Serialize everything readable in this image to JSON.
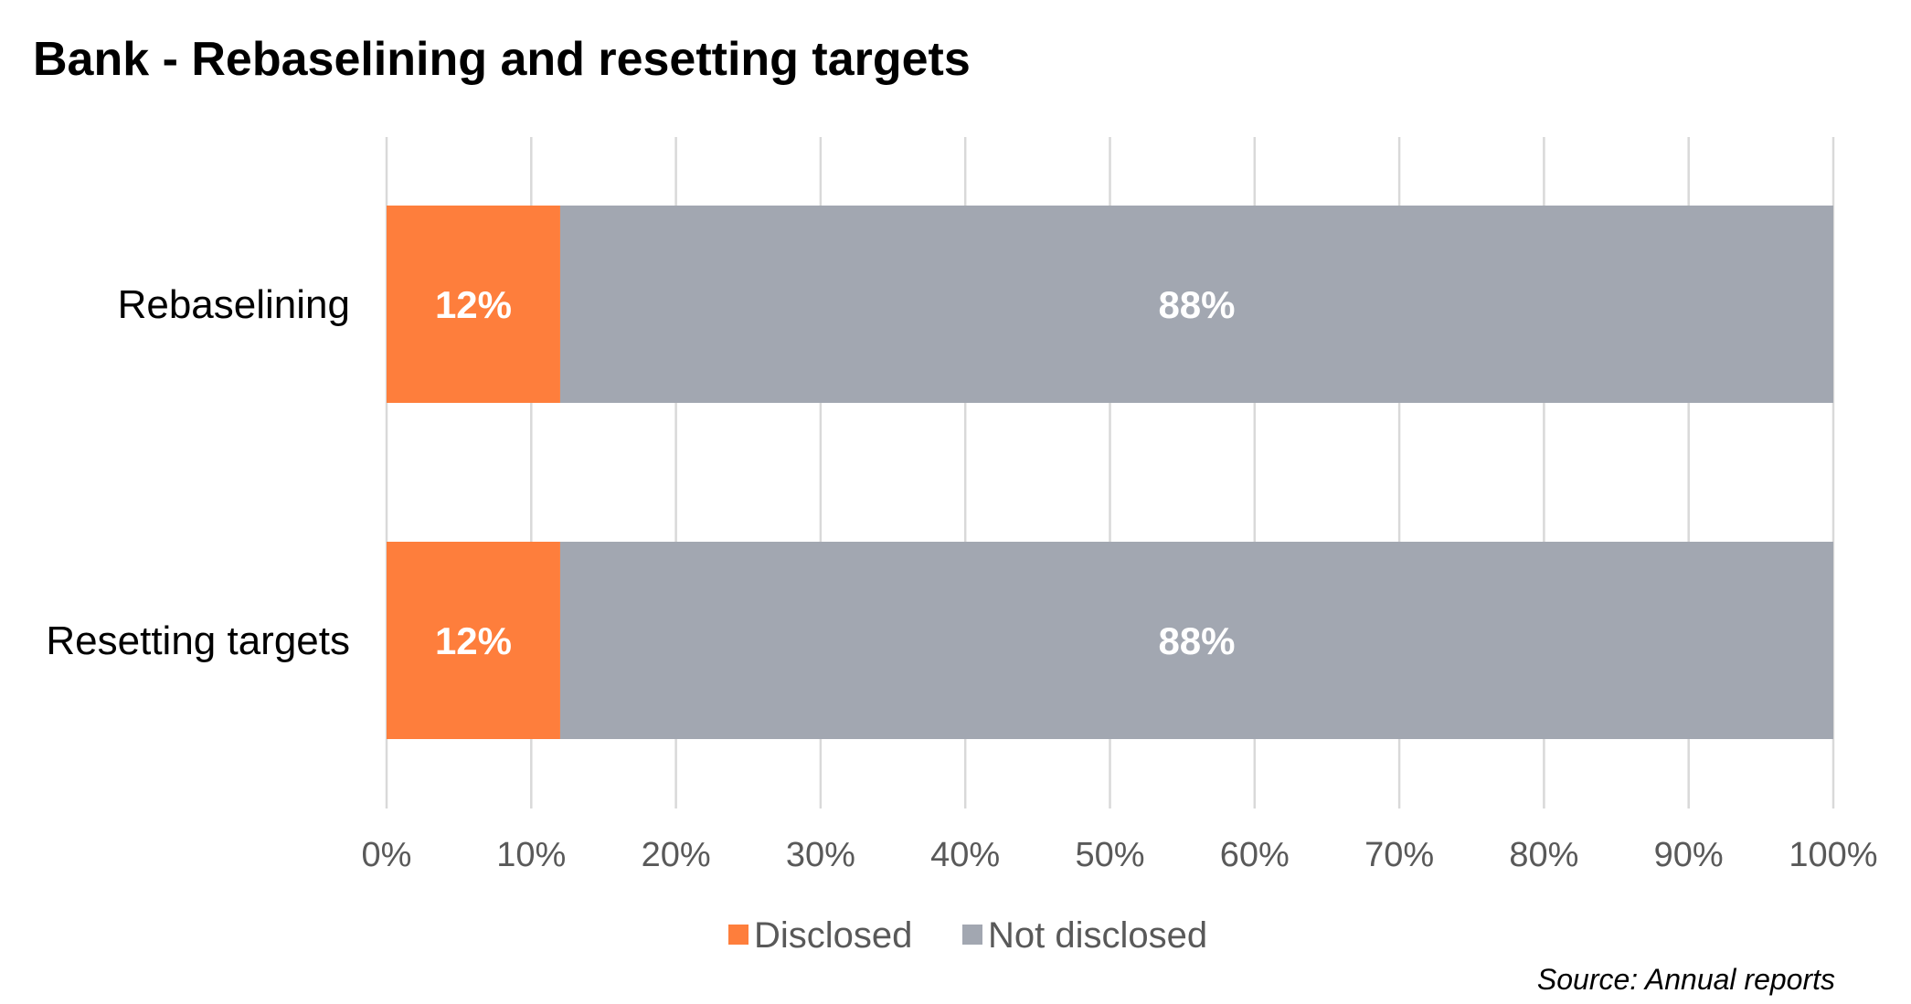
{
  "chart_data": {
    "type": "bar",
    "orientation": "horizontal",
    "stacked": true,
    "title": "Bank - Rebaselining and resetting targets",
    "categories": [
      "Rebaselining",
      "Resetting targets"
    ],
    "series": [
      {
        "name": "Disclosed",
        "values": [
          12,
          12
        ],
        "data_labels": [
          "12%",
          "12%"
        ],
        "color": "#FE7E3C"
      },
      {
        "name": "Not disclosed",
        "values": [
          88,
          88
        ],
        "data_labels": [
          "88%",
          "88%"
        ],
        "color": "#A2A7B1"
      }
    ],
    "xlim": [
      0,
      100
    ],
    "x_ticks": [
      0,
      10,
      20,
      30,
      40,
      50,
      60,
      70,
      80,
      90,
      100
    ],
    "x_tick_labels": [
      "0%",
      "10%",
      "20%",
      "30%",
      "40%",
      "50%",
      "60%",
      "70%",
      "80%",
      "90%",
      "100%"
    ],
    "xlabel": "",
    "ylabel": "",
    "grid": "vertical",
    "gridline_color": "#D9D9D9",
    "legend_position": "bottom",
    "source": "Source: Annual reports"
  }
}
